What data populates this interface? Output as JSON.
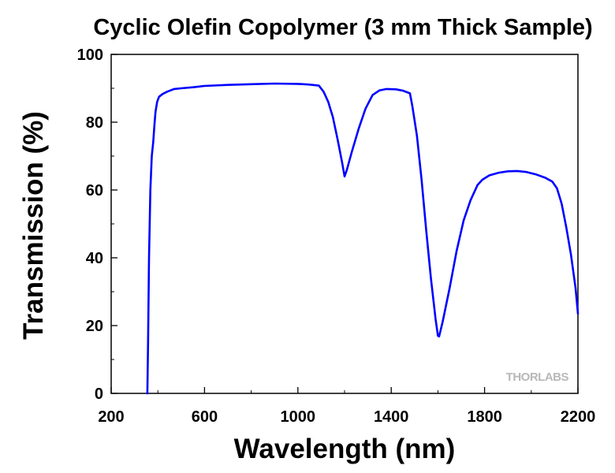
{
  "chart_data": {
    "type": "line",
    "title": "Cyclic Olefin Copolymer (3 mm Thick Sample)",
    "xlabel": "Wavelength (nm)",
    "ylabel": "Transmission (%)",
    "xlim": [
      200,
      2200
    ],
    "ylim": [
      0,
      100
    ],
    "xticks": [
      200,
      600,
      1000,
      1400,
      1800,
      2200
    ],
    "yticks": [
      0,
      20,
      40,
      60,
      80,
      100
    ],
    "grid": false,
    "watermark": "THORLABS",
    "series": [
      {
        "color": "#0000ff",
        "points": [
          [
            355,
            0
          ],
          [
            358,
            15
          ],
          [
            362,
            40
          ],
          [
            368,
            60
          ],
          [
            374,
            70
          ],
          [
            380,
            74
          ],
          [
            385,
            79
          ],
          [
            390,
            83
          ],
          [
            397,
            86
          ],
          [
            405,
            87.5
          ],
          [
            420,
            88.3
          ],
          [
            440,
            89
          ],
          [
            470,
            89.8
          ],
          [
            500,
            90
          ],
          [
            550,
            90.3
          ],
          [
            600,
            90.7
          ],
          [
            700,
            91
          ],
          [
            800,
            91.2
          ],
          [
            900,
            91.4
          ],
          [
            1000,
            91.3
          ],
          [
            1050,
            91.1
          ],
          [
            1090,
            90.8
          ],
          [
            1110,
            89
          ],
          [
            1130,
            86
          ],
          [
            1150,
            81.5
          ],
          [
            1170,
            75
          ],
          [
            1190,
            68
          ],
          [
            1200,
            64
          ],
          [
            1210,
            66
          ],
          [
            1230,
            71
          ],
          [
            1260,
            78
          ],
          [
            1290,
            84
          ],
          [
            1320,
            88
          ],
          [
            1350,
            89.4
          ],
          [
            1380,
            89.8
          ],
          [
            1420,
            89.7
          ],
          [
            1450,
            89.3
          ],
          [
            1480,
            88.5
          ],
          [
            1490,
            85
          ],
          [
            1510,
            76
          ],
          [
            1530,
            63
          ],
          [
            1550,
            48
          ],
          [
            1570,
            34
          ],
          [
            1590,
            22
          ],
          [
            1600,
            17
          ],
          [
            1605,
            16.8
          ],
          [
            1620,
            21
          ],
          [
            1650,
            31
          ],
          [
            1680,
            42
          ],
          [
            1710,
            51
          ],
          [
            1740,
            57
          ],
          [
            1770,
            61.5
          ],
          [
            1790,
            63
          ],
          [
            1820,
            64.3
          ],
          [
            1860,
            65.1
          ],
          [
            1900,
            65.5
          ],
          [
            1940,
            65.6
          ],
          [
            1980,
            65.3
          ],
          [
            2020,
            64.6
          ],
          [
            2060,
            63.6
          ],
          [
            2090,
            62.5
          ],
          [
            2110,
            60.5
          ],
          [
            2130,
            56
          ],
          [
            2150,
            49
          ],
          [
            2170,
            41
          ],
          [
            2190,
            31
          ],
          [
            2200,
            23.5
          ]
        ]
      }
    ]
  }
}
